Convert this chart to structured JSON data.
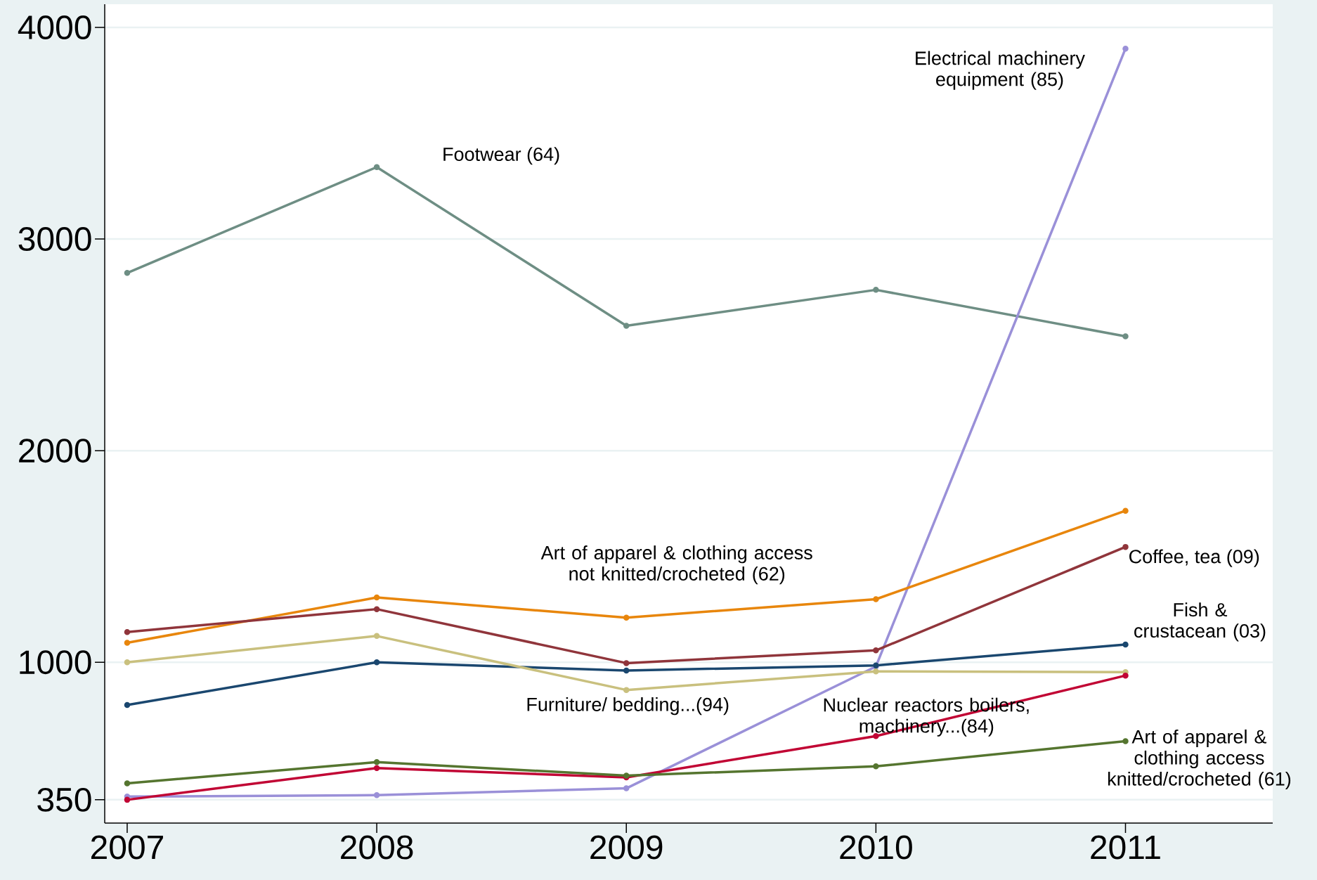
{
  "chart_data": {
    "type": "line",
    "x": [
      2007,
      2008,
      2009,
      2010,
      2011
    ],
    "xlim": [
      2006.91,
      2011.59
    ],
    "xticks": [
      2007,
      2008,
      2009,
      2010,
      2011
    ],
    "ylim": [
      240,
      4110
    ],
    "yticks": [
      350,
      1000,
      2000,
      3000,
      4000
    ],
    "grid": "y",
    "marker": "circle",
    "line_style": "solid",
    "series": [
      {
        "name": "Footwear (64)",
        "color": "#6e8e84",
        "values": [
          2840,
          3340,
          2590,
          2760,
          2540
        ]
      },
      {
        "name": "Electrical machinery equipment (85)",
        "color": "#9a90d8",
        "values": [
          365,
          372,
          404,
          980,
          3900
        ]
      },
      {
        "name": "Art of apparel & clothing access not knitted/crocheted (62)",
        "color": "#e8860c",
        "values": [
          1092,
          1306,
          1211,
          1298,
          1716
        ]
      },
      {
        "name": "Coffee, tea (09)",
        "color": "#90353b",
        "values": [
          1143,
          1251,
          996,
          1056,
          1545
        ]
      },
      {
        "name": "Fish & crustacean (03)",
        "color": "#1a476f",
        "values": [
          798,
          1000,
          961,
          985,
          1084
        ]
      },
      {
        "name": "Furniture/ bedding...(94)",
        "color": "#c9c07e",
        "values": [
          1000,
          1124,
          869,
          957,
          953
        ]
      },
      {
        "name": "Nuclear reactors boilers, machinery...(84)",
        "color": "#c10534",
        "values": [
          350,
          500,
          456,
          651,
          937
        ]
      },
      {
        "name": "Art of apparel & clothing access knitted/crocheted (61)",
        "color": "#55752f",
        "values": [
          428,
          528,
          464,
          508,
          627
        ]
      }
    ]
  }
}
